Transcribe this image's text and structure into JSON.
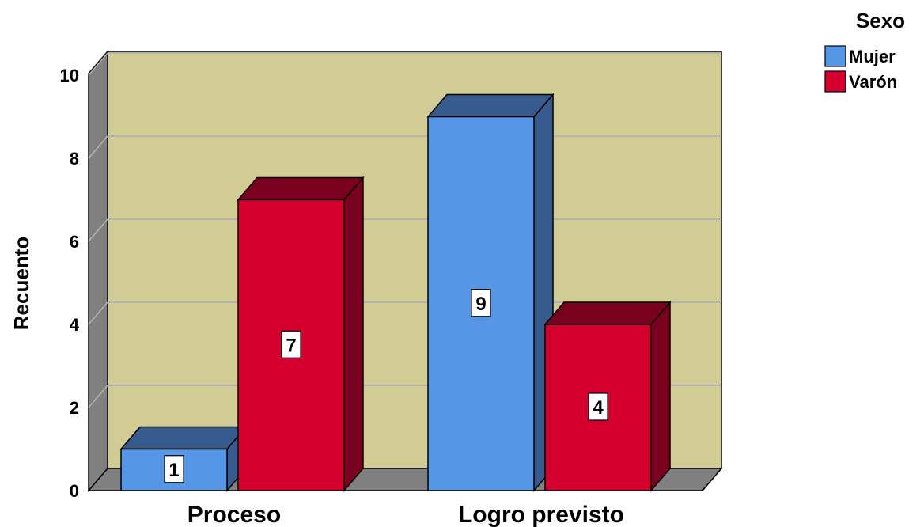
{
  "chart_data": {
    "type": "bar",
    "style": "3d-clustered",
    "categories": [
      "Proceso",
      "Logro previsto"
    ],
    "series": [
      {
        "name": "Mujer",
        "values": [
          1,
          9
        ],
        "color": "#5596E6",
        "side_color": "#365B8C"
      },
      {
        "name": "Varón",
        "values": [
          7,
          4
        ],
        "color": "#D5002E",
        "side_color": "#7A0020"
      }
    ],
    "title": "",
    "xlabel": "",
    "ylabel": "Recuento",
    "ylim": [
      0,
      10
    ],
    "yticks": [
      "0",
      "2",
      "4",
      "6",
      "8",
      "10"
    ],
    "grid": true,
    "legend": {
      "title": "Sexo",
      "position": "top-right"
    },
    "colors": {
      "plot_background": "#D0CC94",
      "wall_side": "#808080",
      "floor": "#808080",
      "gridline": "#B3B3B3"
    }
  }
}
